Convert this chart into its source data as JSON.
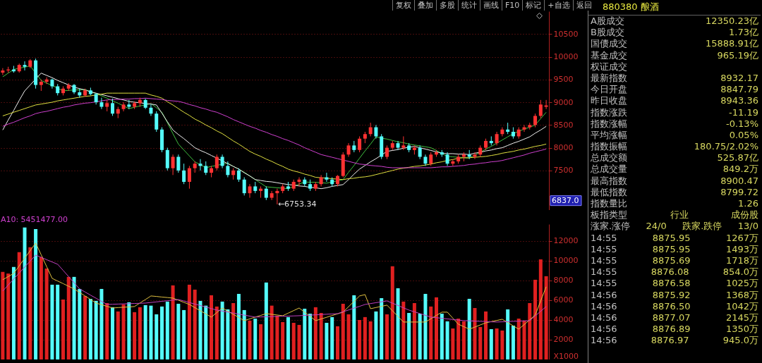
{
  "chart_data": [
    {
      "type": "candlestick",
      "categories": [
        null,
        null,
        null,
        null,
        null,
        null,
        null,
        null,
        null,
        null,
        null,
        null,
        null,
        null,
        null,
        null,
        null,
        null,
        null,
        null,
        null,
        null,
        null,
        null,
        null,
        null,
        null,
        null,
        null,
        null,
        null,
        null,
        null,
        null,
        null,
        null,
        null,
        null,
        null,
        null,
        null,
        null,
        null,
        null,
        null,
        null,
        null,
        null,
        null,
        null,
        null,
        null,
        null,
        null,
        null,
        null,
        null,
        null,
        null,
        null,
        null,
        null,
        null,
        null,
        null,
        null,
        null,
        null,
        null,
        null,
        null,
        null,
        null,
        null,
        null,
        null,
        null,
        null,
        null,
        null,
        null,
        null,
        null,
        null,
        null,
        null,
        null,
        null,
        null,
        null,
        null,
        null,
        null,
        null,
        null,
        null,
        null,
        null,
        null,
        null
      ],
      "ohlc": [
        [
          9650,
          9750,
          9600,
          9700
        ],
        [
          9700,
          9780,
          9650,
          9720
        ],
        [
          9720,
          9800,
          9650,
          9680
        ],
        [
          9680,
          9850,
          9650,
          9820
        ],
        [
          9820,
          9900,
          9700,
          9780
        ],
        [
          9780,
          9950,
          9750,
          9920
        ],
        [
          9920,
          9960,
          9300,
          9380
        ],
        [
          9380,
          9500,
          9250,
          9450
        ],
        [
          9450,
          9550,
          9400,
          9500
        ],
        [
          9500,
          9520,
          9300,
          9350
        ],
        [
          9350,
          9400,
          9150,
          9200
        ],
        [
          9200,
          9350,
          9150,
          9300
        ],
        [
          9300,
          9420,
          9250,
          9380
        ],
        [
          9380,
          9400,
          9180,
          9220
        ],
        [
          9220,
          9300,
          9100,
          9150
        ],
        [
          9150,
          9300,
          9120,
          9260
        ],
        [
          9260,
          9320,
          9150,
          9180
        ],
        [
          9180,
          9200,
          8950,
          9000
        ],
        [
          9000,
          9100,
          8850,
          8900
        ],
        [
          8900,
          9050,
          8800,
          8980
        ],
        [
          8980,
          9080,
          8700,
          8750
        ],
        [
          8750,
          8900,
          8650,
          8850
        ],
        [
          8850,
          9000,
          8800,
          8950
        ],
        [
          8950,
          9050,
          8850,
          8900
        ],
        [
          8900,
          9020,
          8850,
          8980
        ],
        [
          8980,
          9100,
          8900,
          9050
        ],
        [
          9050,
          9080,
          8850,
          8880
        ],
        [
          8880,
          8950,
          8700,
          8750
        ],
        [
          8750,
          8800,
          8350,
          8400
        ],
        [
          8400,
          8450,
          7900,
          7950
        ],
        [
          7950,
          8000,
          7500,
          7550
        ],
        [
          7550,
          7850,
          7400,
          7800
        ],
        [
          7800,
          7850,
          7450,
          7500
        ],
        [
          7500,
          7650,
          7200,
          7250
        ],
        [
          7250,
          7600,
          7100,
          7550
        ],
        [
          7550,
          7700,
          7450,
          7650
        ],
        [
          7650,
          7750,
          7500,
          7600
        ],
        [
          7600,
          7700,
          7400,
          7450
        ],
        [
          7450,
          7600,
          7350,
          7550
        ],
        [
          7550,
          7850,
          7500,
          7800
        ],
        [
          7800,
          7850,
          7550,
          7600
        ],
        [
          7600,
          7700,
          7350,
          7400
        ],
        [
          7400,
          7550,
          7300,
          7500
        ],
        [
          7500,
          7550,
          7250,
          7300
        ],
        [
          7300,
          7350,
          6950,
          7000
        ],
        [
          7000,
          7200,
          6900,
          7150
        ],
        [
          7150,
          7250,
          7000,
          7050
        ],
        [
          7050,
          7150,
          6900,
          7100
        ],
        [
          7100,
          7150,
          6850,
          6900
        ],
        [
          6900,
          7050,
          6850,
          7000
        ],
        [
          7000,
          7100,
          6753.34,
          7050
        ],
        [
          7050,
          7200,
          7000,
          7150
        ],
        [
          7150,
          7250,
          7050,
          7100
        ],
        [
          7100,
          7300,
          7050,
          7250
        ],
        [
          7250,
          7350,
          7150,
          7300
        ],
        [
          7300,
          7350,
          7150,
          7200
        ],
        [
          7200,
          7300,
          7050,
          7100
        ],
        [
          7100,
          7250,
          7050,
          7200
        ],
        [
          7200,
          7400,
          7150,
          7350
        ],
        [
          7350,
          7450,
          7250,
          7300
        ],
        [
          7300,
          7350,
          7150,
          7200
        ],
        [
          7200,
          7400,
          7150,
          7380
        ],
        [
          7380,
          7900,
          7350,
          7850
        ],
        [
          7850,
          8100,
          7800,
          8050
        ],
        [
          8050,
          8150,
          7900,
          7950
        ],
        [
          7950,
          8250,
          7900,
          8200
        ],
        [
          8200,
          8350,
          8100,
          8300
        ],
        [
          8300,
          8550,
          8250,
          8450
        ],
        [
          8450,
          8500,
          8200,
          8250
        ],
        [
          8250,
          8300,
          7750,
          7800
        ],
        [
          7800,
          8050,
          7750,
          8000
        ],
        [
          8000,
          8150,
          7950,
          8100
        ],
        [
          8100,
          8150,
          7950,
          8000
        ],
        [
          8000,
          8250,
          7950,
          8050
        ],
        [
          8050,
          8100,
          7900,
          7950
        ],
        [
          7950,
          8050,
          7850,
          8000
        ],
        [
          8000,
          8050,
          7750,
          7800
        ],
        [
          7800,
          7850,
          7600,
          7650
        ],
        [
          7650,
          7900,
          7600,
          7850
        ],
        [
          7850,
          7950,
          7800,
          7900
        ],
        [
          7900,
          7950,
          7800,
          7850
        ],
        [
          7850,
          7900,
          7600,
          7650
        ],
        [
          7650,
          7750,
          7600,
          7700
        ],
        [
          7700,
          7850,
          7650,
          7800
        ],
        [
          7800,
          7900,
          7700,
          7850
        ],
        [
          7850,
          7950,
          7750,
          7800
        ],
        [
          7800,
          7900,
          7750,
          7850
        ],
        [
          7850,
          8050,
          7800,
          8000
        ],
        [
          8000,
          8200,
          7950,
          8150
        ],
        [
          8150,
          8250,
          8050,
          8100
        ],
        [
          8100,
          8350,
          8050,
          8300
        ],
        [
          8300,
          8450,
          8250,
          8400
        ],
        [
          8400,
          8550,
          8300,
          8350
        ],
        [
          8350,
          8450,
          8200,
          8250
        ],
        [
          8250,
          8450,
          8200,
          8400
        ],
        [
          8400,
          8500,
          8350,
          8450
        ],
        [
          8450,
          8550,
          8400,
          8500
        ],
        [
          8500,
          8750,
          8450,
          8700
        ],
        [
          8700,
          9050,
          8650,
          8950
        ],
        [
          8900,
          9050,
          8850,
          8930
        ]
      ],
      "colors": [
        "#ff3232",
        "#ff3232",
        "#54fcfc",
        "#ff3232",
        "#54fcfc",
        "#ff3232",
        "#54fcfc",
        "#ff3232",
        "#ff3232",
        "#54fcfc",
        "#54fcfc",
        "#ff3232",
        "#ff3232",
        "#54fcfc",
        "#54fcfc",
        "#ff3232",
        "#54fcfc",
        "#54fcfc",
        "#54fcfc",
        "#ff3232",
        "#54fcfc",
        "#ff3232",
        "#ff3232",
        "#54fcfc",
        "#ff3232",
        "#ff3232",
        "#54fcfc",
        "#54fcfc",
        "#54fcfc",
        "#54fcfc",
        "#54fcfc",
        "#ff3232",
        "#54fcfc",
        "#54fcfc",
        "#ff3232",
        "#ff3232",
        "#54fcfc",
        "#54fcfc",
        "#ff3232",
        "#ff3232",
        "#54fcfc",
        "#54fcfc",
        "#ff3232",
        "#54fcfc",
        "#54fcfc",
        "#ff3232",
        "#54fcfc",
        "#ff3232",
        "#54fcfc",
        "#ff3232",
        "#ff3232",
        "#ff3232",
        "#54fcfc",
        "#ff3232",
        "#ff3232",
        "#54fcfc",
        "#54fcfc",
        "#ff3232",
        "#ff3232",
        "#54fcfc",
        "#54fcfc",
        "#ff3232",
        "#ff3232",
        "#ff3232",
        "#54fcfc",
        "#ff3232",
        "#ff3232",
        "#ff3232",
        "#54fcfc",
        "#54fcfc",
        "#ff3232",
        "#ff3232",
        "#54fcfc",
        "#ff3232",
        "#54fcfc",
        "#ff3232",
        "#54fcfc",
        "#54fcfc",
        "#ff3232",
        "#ff3232",
        "#54fcfc",
        "#54fcfc",
        "#ff3232",
        "#ff3232",
        "#ff3232",
        "#54fcfc",
        "#ff3232",
        "#ff3232",
        "#ff3232",
        "#54fcfc",
        "#ff3232",
        "#ff3232",
        "#54fcfc",
        "#54fcfc",
        "#ff3232",
        "#ff3232",
        "#ff3232",
        "#ff3232",
        "#ff3232",
        "#ff3232"
      ],
      "series": [
        {
          "type": "line",
          "color": "#40c040",
          "values": [
            9560,
            9640,
            9720,
            9750,
            9770,
            9800,
            9640,
            9480,
            9420,
            9370,
            9310,
            9250,
            9260,
            9270,
            9270,
            9280,
            9230,
            9190,
            9140,
            9090,
            9030,
            8980,
            8920,
            8860,
            8890,
            8920,
            8940,
            8970,
            8880,
            8780,
            8550,
            8310,
            8080,
            7950,
            7820,
            7690,
            7630,
            7560,
            7590,
            7610,
            7640,
            7660,
            7590,
            7530,
            7460,
            7380,
            7300,
            7220,
            7140,
            7130,
            7120,
            7110,
            7100,
            7150,
            7200,
            7250,
            7240,
            7240,
            7230,
            7220,
            7250,
            7270,
            7300,
            7460,
            7610,
            7770,
            7930,
            8080,
            8240,
            8210,
            8190,
            8160,
            8130,
            8110,
            8080,
            8060,
            8040,
            8020,
            8000,
            7940,
            7870,
            7810,
            7800,
            7790,
            7780,
            7770,
            7840,
            7900,
            7970,
            8030,
            8100,
            8170,
            8240,
            8310,
            8360,
            8410,
            8450,
            8500,
            8640,
            8780
          ]
        },
        {
          "type": "line",
          "color": "#f0f0f0",
          "values": [
            8390,
            8610,
            8820,
            9040,
            9250,
            9380,
            9510,
            9640,
            9590,
            9540,
            9480,
            9430,
            9380,
            9330,
            9300,
            9270,
            9230,
            9200,
            9170,
            9140,
            9110,
            9080,
            9050,
            9020,
            9000,
            8990,
            8970,
            8960,
            8940,
            8760,
            8570,
            8390,
            8290,
            8200,
            8100,
            8000,
            7940,
            7890,
            7830,
            7770,
            7710,
            7650,
            7590,
            7530,
            7450,
            7380,
            7300,
            7280,
            7260,
            7250,
            7230,
            7210,
            7190,
            7180,
            7160,
            7150,
            7130,
            7120,
            7100,
            7120,
            7150,
            7170,
            7190,
            7300,
            7420,
            7530,
            7610,
            7690,
            7760,
            7840,
            7920,
            7940,
            7960,
            7990,
            8010,
            8030,
            8000,
            7970,
            7940,
            7910,
            7880,
            7870,
            7870,
            7860,
            7860,
            7850,
            7880,
            7900,
            7930,
            7950,
            7980,
            8000,
            8050,
            8100,
            8140,
            8190,
            8240,
            8320,
            8390,
            8470
          ]
        },
        {
          "type": "line",
          "color": "#e0e040",
          "values": [
            8700,
            8740,
            8780,
            8820,
            8860,
            8900,
            8940,
            8960,
            8980,
            9000,
            9030,
            9050,
            9070,
            9090,
            9110,
            9130,
            9140,
            9160,
            9180,
            9200,
            9200,
            9200,
            9200,
            9200,
            9200,
            9200,
            9200,
            9160,
            9130,
            9090,
            9010,
            8940,
            8860,
            8780,
            8710,
            8630,
            8570,
            8500,
            8440,
            8370,
            8310,
            8230,
            8150,
            8080,
            8000,
            7920,
            7860,
            7810,
            7750,
            7700,
            7640,
            7590,
            7530,
            7490,
            7460,
            7420,
            7390,
            7350,
            7340,
            7330,
            7320,
            7310,
            7300,
            7320,
            7330,
            7350,
            7360,
            7380,
            7410,
            7440,
            7470,
            7500,
            7530,
            7550,
            7570,
            7590,
            7600,
            7620,
            7640,
            7670,
            7690,
            7720,
            7740,
            7770,
            7780,
            7780,
            7790,
            7800,
            7810,
            7830,
            7850,
            7880,
            7900,
            7920,
            7950,
            7970,
            8000,
            8030,
            8050,
            8080
          ]
        },
        {
          "type": "line",
          "color": "#d040d0",
          "values": [
            8470,
            8520,
            8560,
            8610,
            8660,
            8700,
            8750,
            8780,
            8800,
            8830,
            8860,
            8890,
            8910,
            8940,
            8960,
            8980,
            8990,
            9010,
            9030,
            9050,
            9060,
            9060,
            9070,
            9070,
            9080,
            9080,
            9090,
            9080,
            9070,
            9060,
            9040,
            9030,
            9020,
            8990,
            8950,
            8920,
            8880,
            8850,
            8810,
            8780,
            8730,
            8680,
            8620,
            8570,
            8520,
            8470,
            8430,
            8380,
            8340,
            8290,
            8250,
            8200,
            8160,
            8110,
            8060,
            8000,
            7950,
            7900,
            7850,
            7820,
            7790,
            7760,
            7730,
            7700,
            7670,
            7640,
            7630,
            7610,
            7600,
            7590,
            7570,
            7560,
            7560,
            7560,
            7560,
            7560,
            7560,
            7560,
            7560,
            7570,
            7580,
            7580,
            7590,
            7600,
            7610,
            7630,
            7640,
            7660,
            7670,
            7690,
            7700,
            7720,
            7750,
            7780,
            7810,
            7840,
            7880,
            7910,
            7940,
            7970
          ]
        }
      ],
      "ylim": [
        6630,
        11000
      ],
      "yticks": [
        7500,
        8000,
        8500,
        9000,
        9500,
        10000,
        10500
      ],
      "grid": "y",
      "tick_labels": "y",
      "annotations": [
        "←6753.34",
        {
          "text": "6837.0",
          "y": 6837.0
        }
      ]
    },
    {
      "type": "bar",
      "categories": [
        null,
        null,
        null,
        null,
        null,
        null,
        null,
        null,
        null,
        null,
        null,
        null,
        null,
        null,
        null,
        null,
        null,
        null,
        null,
        null,
        null,
        null,
        null,
        null,
        null,
        null,
        null,
        null,
        null,
        null,
        null,
        null,
        null,
        null,
        null,
        null,
        null,
        null,
        null,
        null,
        null,
        null,
        null,
        null,
        null,
        null,
        null,
        null,
        null,
        null,
        null,
        null,
        null,
        null,
        null,
        null,
        null,
        null,
        null,
        null,
        null,
        null,
        null,
        null,
        null,
        null,
        null,
        null,
        null,
        null,
        null,
        null,
        null,
        null,
        null,
        null,
        null,
        null,
        null,
        null,
        null,
        null,
        null,
        null,
        null,
        null,
        null,
        null,
        null,
        null,
        null,
        null,
        null,
        null,
        null,
        null,
        null,
        null,
        null,
        null
      ],
      "ylim": [
        0,
        13700
      ],
      "yticks": [
        2000,
        4000,
        6000,
        8000,
        10000,
        12000
      ],
      "grid": "y",
      "tick_labels": "y",
      "ylabel": "X1000",
      "annotations": [
        "A10: 5451477.00"
      ],
      "series": [
        {
          "type": "bar",
          "values": [
            8860,
            8700,
            9360,
            10860,
            13360,
            11360,
            13200,
            10360,
            9210,
            7570,
            7570,
            6070,
            8360,
            8360,
            7140,
            6430,
            6140,
            5930,
            7140,
            5710,
            5290,
            4860,
            5570,
            5790,
            4790,
            5290,
            5500,
            5450,
            4570,
            5360,
            5860,
            7500,
            5640,
            5000,
            7570,
            7070,
            5930,
            5450,
            6500,
            5360,
            5860,
            5070,
            5710,
            6640,
            5000,
            3930,
            4140,
            3570,
            7790,
            5450,
            4430,
            3790,
            4290,
            3710,
            3500,
            5140,
            4640,
            5290,
            4710,
            3710,
            4290,
            3360,
            5640,
            4570,
            6500,
            4000,
            4290,
            3860,
            4860,
            6210,
            4570,
            9430,
            7210,
            5860,
            4710,
            5710,
            4640,
            6640,
            5360,
            6290,
            4640,
            3860,
            3140,
            4140,
            3860,
            6140,
            5210,
            3290,
            4860,
            3070,
            3140,
            2930,
            5070,
            3430,
            4140,
            3930,
            5710,
            8070,
            10140,
            8430
          ],
          "colors": [
            "#e02020",
            "#e02020",
            "#54fcfc",
            "#e02020",
            "#54fcfc",
            "#e02020",
            "#54fcfc",
            "#e02020",
            "#e02020",
            "#54fcfc",
            "#54fcfc",
            "#e02020",
            "#e02020",
            "#54fcfc",
            "#54fcfc",
            "#e02020",
            "#54fcfc",
            "#54fcfc",
            "#54fcfc",
            "#e02020",
            "#54fcfc",
            "#e02020",
            "#e02020",
            "#54fcfc",
            "#e02020",
            "#e02020",
            "#54fcfc",
            "#54fcfc",
            "#54fcfc",
            "#54fcfc",
            "#54fcfc",
            "#e02020",
            "#54fcfc",
            "#54fcfc",
            "#e02020",
            "#e02020",
            "#54fcfc",
            "#54fcfc",
            "#e02020",
            "#e02020",
            "#54fcfc",
            "#54fcfc",
            "#e02020",
            "#54fcfc",
            "#54fcfc",
            "#e02020",
            "#54fcfc",
            "#e02020",
            "#54fcfc",
            "#e02020",
            "#e02020",
            "#e02020",
            "#54fcfc",
            "#e02020",
            "#e02020",
            "#54fcfc",
            "#54fcfc",
            "#e02020",
            "#e02020",
            "#54fcfc",
            "#54fcfc",
            "#e02020",
            "#e02020",
            "#e02020",
            "#54fcfc",
            "#e02020",
            "#e02020",
            "#e02020",
            "#54fcfc",
            "#54fcfc",
            "#e02020",
            "#e02020",
            "#54fcfc",
            "#e02020",
            "#54fcfc",
            "#e02020",
            "#54fcfc",
            "#54fcfc",
            "#e02020",
            "#e02020",
            "#54fcfc",
            "#54fcfc",
            "#e02020",
            "#e02020",
            "#e02020",
            "#54fcfc",
            "#e02020",
            "#e02020",
            "#e02020",
            "#54fcfc",
            "#e02020",
            "#e02020",
            "#54fcfc",
            "#54fcfc",
            "#e02020",
            "#e02020",
            "#e02020",
            "#e02020",
            "#e02020",
            "#e02020"
          ]
        },
        {
          "type": "line",
          "color": "#e0c040",
          "values": [
            8070,
            8390,
            8710,
            9480,
            10250,
            11020,
            11790,
            10600,
            9400,
            8210,
            7940,
            7680,
            7410,
            7140,
            6780,
            6430,
            6070,
            5710,
            5540,
            5380,
            5210,
            5250,
            5290,
            5320,
            5360,
            5720,
            6070,
            6430,
            6380,
            6320,
            6270,
            6210,
            6000,
            5780,
            5570,
            5250,
            4930,
            4610,
            4290,
            4750,
            5210,
            4890,
            4570,
            4250,
            3930,
            4110,
            4290,
            4460,
            4640,
            4570,
            4500,
            4430,
            4690,
            4950,
            5210,
            4780,
            4360,
            3930,
            4100,
            4270,
            4450,
            4620,
            4790,
            5340,
            5880,
            6430,
            6570,
            5140,
            5260,
            5380,
            5500,
            4930,
            4360,
            3790,
            3790,
            3790,
            3790,
            3790,
            4120,
            4460,
            4790,
            4790,
            4180,
            3570,
            3320,
            3070,
            3280,
            3500,
            3710,
            3830,
            3950,
            4070,
            3740,
            3400,
            3070,
            3540,
            4020,
            4500,
            5930,
            7360
          ]
        },
        {
          "type": "line",
          "color": "#c040c0",
          "values": [
            6930,
            7540,
            8140,
            8750,
            9360,
            9960,
            10570,
            10340,
            10100,
            9870,
            9640,
            9020,
            8390,
            7770,
            7140,
            6830,
            6510,
            6200,
            5880,
            5570,
            5590,
            5610,
            5630,
            5650,
            5670,
            5690,
            5710,
            5770,
            5830,
            5890,
            5950,
            6010,
            6070,
            5920,
            5760,
            5610,
            5460,
            5310,
            5150,
            5000,
            4900,
            4800,
            4700,
            4590,
            4490,
            4390,
            4290,
            4310,
            4320,
            4340,
            4360,
            4380,
            4390,
            4410,
            4430,
            4460,
            4490,
            4520,
            4550,
            4580,
            4610,
            4640,
            4830,
            5010,
            5200,
            5380,
            5570,
            5660,
            5750,
            5840,
            5930,
            5700,
            5470,
            5230,
            5000,
            4820,
            4650,
            4470,
            4290,
            4230,
            4170,
            4110,
            4050,
            3990,
            3930,
            3910,
            3880,
            3860,
            3840,
            3810,
            3790,
            3810,
            3840,
            3860,
            3880,
            3910,
            3930,
            4410,
            4880,
            5360
          ]
        }
      ]
    },
    {
      "type": "other",
      "title": "880380 酿酒",
      "annotations": [
        "A股成交 12350.23亿",
        "B股成交 1.73亿",
        "国债成交 15888.91亿",
        "基金成交 965.19亿",
        "权证成交",
        "最新指数 8932.17",
        "今日开盘 8847.79",
        "昨日收盘 8943.36",
        "指数涨跌 -11.19",
        "指数涨幅 -0.13%",
        "平均涨幅 0.05%",
        "指数振幅 180.75/2.02%",
        "总成交额 525.87亿",
        "总成交量 849.2万",
        "最高指数 8900.47",
        "最低指数 8799.72",
        "指数量比 1.26",
        "板指类型 行业 成份股",
        "涨家.涨停 24/0 跌家.跌停 13/0",
        "14:55 8875.95 1267万",
        "14:55 8875.95 1493万",
        "14:55 8875.69 1718万",
        "14:55 8876.08 854.0万",
        "14:55 8876.58 1025万",
        "14:56 8875.92 1368万",
        "14:56 8876.50 1042万",
        "14:56 8877.07 2145万",
        "14:56 8876.89 1350万",
        "14:56 8876.97 945.0万"
      ]
    },
    {
      "type": "other",
      "annotations": [
        "复权",
        "叠加",
        "多股",
        "统计",
        "画线",
        "F10",
        "标记",
        "+自选",
        "返回"
      ]
    }
  ]
}
